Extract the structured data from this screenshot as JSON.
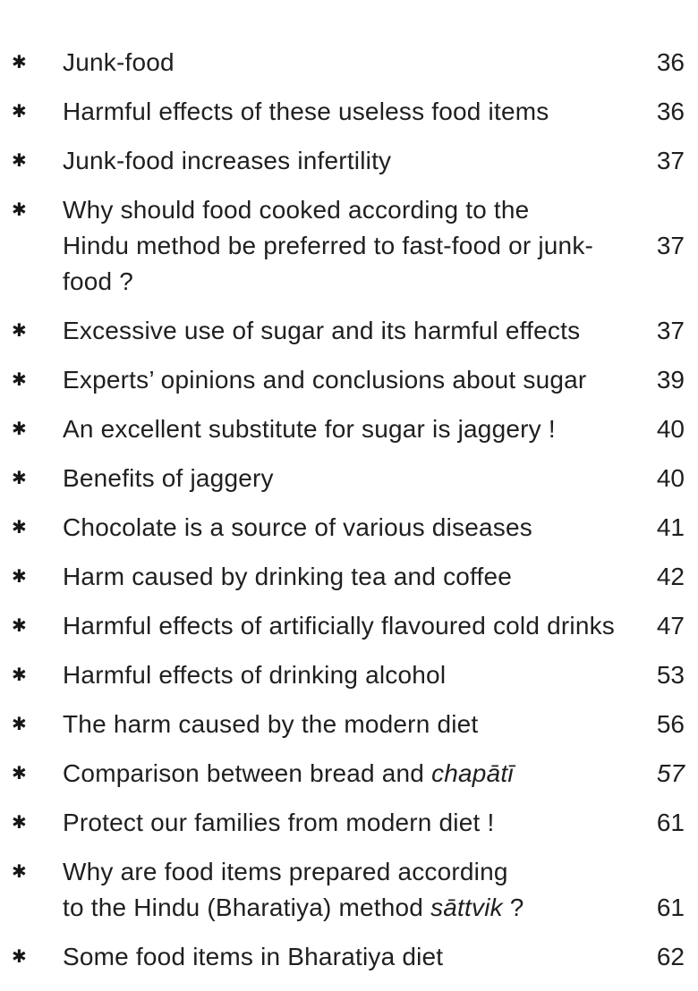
{
  "page": {
    "background_color": "#ffffff",
    "text_color": "#1f1f1f",
    "bullet_char": "✱"
  },
  "toc": {
    "entries": [
      {
        "lines": [
          {
            "bullet": true,
            "segments": [
              {
                "text": "Junk-food"
              }
            ],
            "page": "36"
          }
        ]
      },
      {
        "lines": [
          {
            "bullet": true,
            "segments": [
              {
                "text": "Harmful effects of these useless food items"
              }
            ],
            "page": "36"
          }
        ]
      },
      {
        "lines": [
          {
            "bullet": true,
            "segments": [
              {
                "text": "Junk-food increases infertility"
              }
            ],
            "page": "37"
          }
        ]
      },
      {
        "lines": [
          {
            "bullet": true,
            "segments": [
              {
                "text": "Why should food cooked according to the"
              }
            ],
            "page": ""
          },
          {
            "bullet": false,
            "segments": [
              {
                "text": "Hindu method be preferred to fast-food or junk-food ?"
              }
            ],
            "page": "37"
          }
        ]
      },
      {
        "lines": [
          {
            "bullet": true,
            "segments": [
              {
                "text": "Excessive use of sugar and its harmful effects"
              }
            ],
            "page": "37"
          }
        ]
      },
      {
        "lines": [
          {
            "bullet": true,
            "segments": [
              {
                "text": "Experts’ opinions and conclusions about sugar"
              }
            ],
            "page": "39"
          }
        ]
      },
      {
        "lines": [
          {
            "bullet": true,
            "segments": [
              {
                "text": "An excellent substitute for sugar is jaggery !"
              }
            ],
            "page": "40"
          }
        ]
      },
      {
        "lines": [
          {
            "bullet": true,
            "segments": [
              {
                "text": "Benefits of jaggery"
              }
            ],
            "page": "40"
          }
        ]
      },
      {
        "lines": [
          {
            "bullet": true,
            "segments": [
              {
                "text": "Chocolate is a source of various diseases"
              }
            ],
            "page": "41"
          }
        ]
      },
      {
        "lines": [
          {
            "bullet": true,
            "segments": [
              {
                "text": "Harm caused by drinking tea and coffee"
              }
            ],
            "page": "42"
          }
        ]
      },
      {
        "lines": [
          {
            "bullet": true,
            "segments": [
              {
                "text": "Harmful effects of artificially flavoured cold drinks"
              }
            ],
            "page": "47"
          }
        ]
      },
      {
        "lines": [
          {
            "bullet": true,
            "segments": [
              {
                "text": "Harmful effects of drinking alcohol"
              }
            ],
            "page": "53"
          }
        ]
      },
      {
        "lines": [
          {
            "bullet": true,
            "segments": [
              {
                "text": "The harm caused by the modern diet"
              }
            ],
            "page": "56"
          }
        ]
      },
      {
        "lines": [
          {
            "bullet": true,
            "segments": [
              {
                "text": "Comparison between bread and "
              },
              {
                "text": "chapātī",
                "italic": true
              }
            ],
            "page": "57",
            "page_italic": true
          }
        ]
      },
      {
        "lines": [
          {
            "bullet": true,
            "segments": [
              {
                "text": "Protect our families from modern diet !"
              }
            ],
            "page": "61"
          }
        ]
      },
      {
        "lines": [
          {
            "bullet": true,
            "segments": [
              {
                "text": "Why are food items prepared according"
              }
            ],
            "page": ""
          },
          {
            "bullet": false,
            "segments": [
              {
                "text": "to the Hindu (Bharatiya) method "
              },
              {
                "text": "sāttvik",
                "italic": true
              },
              {
                "text": " ?"
              }
            ],
            "page": "61"
          }
        ]
      },
      {
        "lines": [
          {
            "bullet": true,
            "segments": [
              {
                "text": "Some food items in Bharatiya diet"
              }
            ],
            "page": "62"
          }
        ]
      }
    ]
  }
}
